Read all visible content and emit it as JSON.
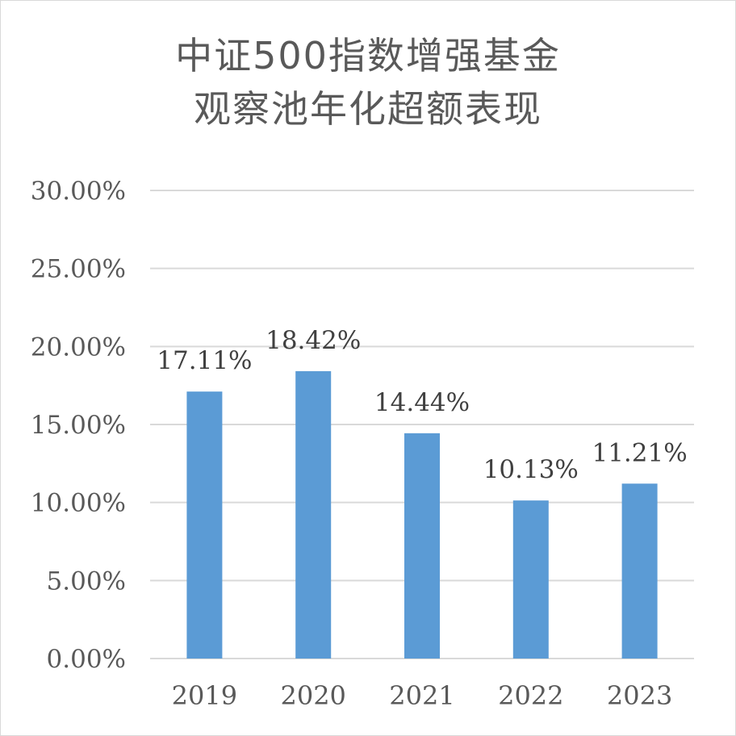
{
  "chart_data": {
    "type": "bar",
    "title_lines": [
      "中证500指数增强基金",
      "观察池年化超额表现"
    ],
    "categories": [
      "2019",
      "2020",
      "2021",
      "2022",
      "2023"
    ],
    "values": [
      17.11,
      18.42,
      14.44,
      10.13,
      11.21
    ],
    "data_labels": [
      "17.11%",
      "18.42%",
      "14.44%",
      "10.13%",
      "11.21%"
    ],
    "y_ticks": [
      0,
      5,
      10,
      15,
      20,
      25,
      30
    ],
    "y_tick_labels": [
      "0.00%",
      "5.00%",
      "10.00%",
      "15.00%",
      "20.00%",
      "25.00%",
      "30.00%"
    ],
    "ylim": [
      0,
      30
    ],
    "grid": true,
    "legend": "none",
    "bar_color": "#5b9bd5",
    "grid_color": "#d9d9d9"
  }
}
